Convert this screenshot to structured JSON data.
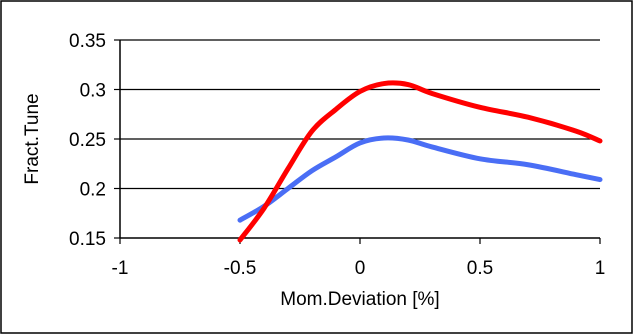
{
  "chart_data": {
    "type": "line",
    "title": "",
    "xlabel": "Mom.Deviation [%]",
    "ylabel": "Fract.Tune",
    "xlim": [
      -1,
      1
    ],
    "ylim": [
      0.15,
      0.35
    ],
    "x_ticks": [
      -1,
      -0.5,
      0,
      0.5,
      1
    ],
    "x_tick_labels": [
      "-1",
      "-0.5",
      "0",
      "0.5",
      "1"
    ],
    "y_ticks": [
      0.15,
      0.2,
      0.25,
      0.3,
      0.35
    ],
    "y_tick_labels": [
      "0.15",
      "0.2",
      "0.25",
      "0.3",
      "0.35"
    ],
    "grid": "horizontal",
    "legend": "none",
    "series": [
      {
        "color": "#ff0000",
        "x": [
          -0.5,
          -0.4,
          -0.3,
          -0.2,
          -0.1,
          0.0,
          0.1,
          0.2,
          0.3,
          0.5,
          0.7,
          0.9,
          1.0
        ],
        "y": [
          0.148,
          0.18,
          0.22,
          0.258,
          0.28,
          0.298,
          0.306,
          0.305,
          0.296,
          0.282,
          0.272,
          0.258,
          0.248
        ]
      },
      {
        "color": "#4a6ef5",
        "x": [
          -0.5,
          -0.4,
          -0.3,
          -0.2,
          -0.1,
          0.0,
          0.1,
          0.2,
          0.3,
          0.5,
          0.7,
          0.9,
          1.0
        ],
        "y": [
          0.168,
          0.182,
          0.2,
          0.218,
          0.232,
          0.246,
          0.251,
          0.249,
          0.242,
          0.23,
          0.224,
          0.214,
          0.209
        ]
      }
    ]
  }
}
